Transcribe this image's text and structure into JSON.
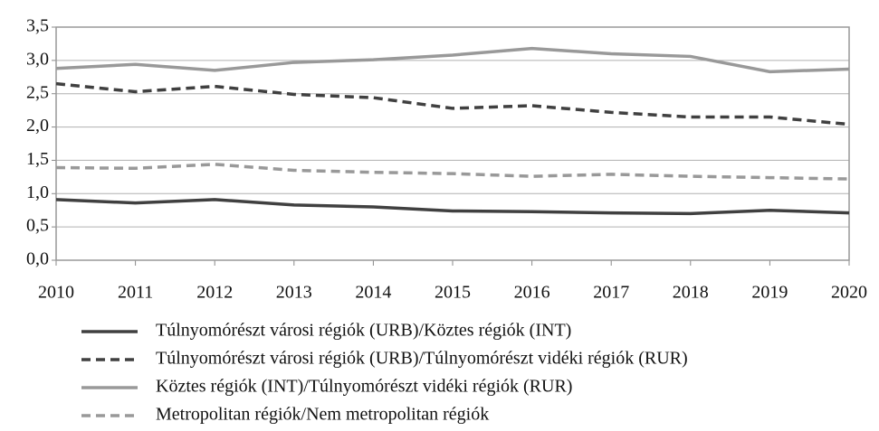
{
  "chart_data": {
    "type": "line",
    "x": [
      2010,
      2011,
      2012,
      2013,
      2014,
      2015,
      2016,
      2017,
      2018,
      2019,
      2020
    ],
    "xlim": [
      2010,
      2020
    ],
    "xticks": [
      2010,
      2011,
      2012,
      2013,
      2014,
      2015,
      2016,
      2017,
      2018,
      2019,
      2020
    ],
    "ylim": [
      0,
      3.5
    ],
    "yticks": [
      {
        "value": 0,
        "label": "0,0"
      },
      {
        "value": 0.5,
        "label": "0,5"
      },
      {
        "value": 1,
        "label": "1,0"
      },
      {
        "value": 1.5,
        "label": "1,5"
      },
      {
        "value": 2,
        "label": "2,0"
      },
      {
        "value": 2.5,
        "label": "2,5"
      },
      {
        "value": 3,
        "label": "3,0"
      },
      {
        "value": 3.5,
        "label": "3,5"
      }
    ],
    "grid": true,
    "legend": "bottom",
    "series": [
      {
        "name": "Túlnyomórészt városi régiók (URB)/Köztes régiók (INT)",
        "color": "#404040",
        "style": "solid",
        "values": [
          0.91,
          0.86,
          0.91,
          0.83,
          0.8,
          0.74,
          0.73,
          0.71,
          0.7,
          0.75,
          0.71
        ]
      },
      {
        "name": "Túlnyomórészt városi régiók (URB)/Túlnyomórészt vidéki régiók (RUR)",
        "color": "#404040",
        "style": "dashed",
        "values": [
          2.65,
          2.53,
          2.61,
          2.49,
          2.44,
          2.28,
          2.32,
          2.22,
          2.15,
          2.15,
          2.04
        ]
      },
      {
        "name": "Köztes régiók (INT)/Túlnyomórészt vidéki régiók (RUR)",
        "color": "#999999",
        "style": "solid",
        "values": [
          2.88,
          2.94,
          2.85,
          2.97,
          3.01,
          3.08,
          3.18,
          3.1,
          3.06,
          2.83,
          2.87
        ]
      },
      {
        "name": "Metropolitan régiók/Nem metropolitan régiók",
        "color": "#999999",
        "style": "dashed",
        "values": [
          1.39,
          1.38,
          1.44,
          1.35,
          1.32,
          1.3,
          1.26,
          1.29,
          1.26,
          1.24,
          1.22
        ]
      }
    ]
  }
}
